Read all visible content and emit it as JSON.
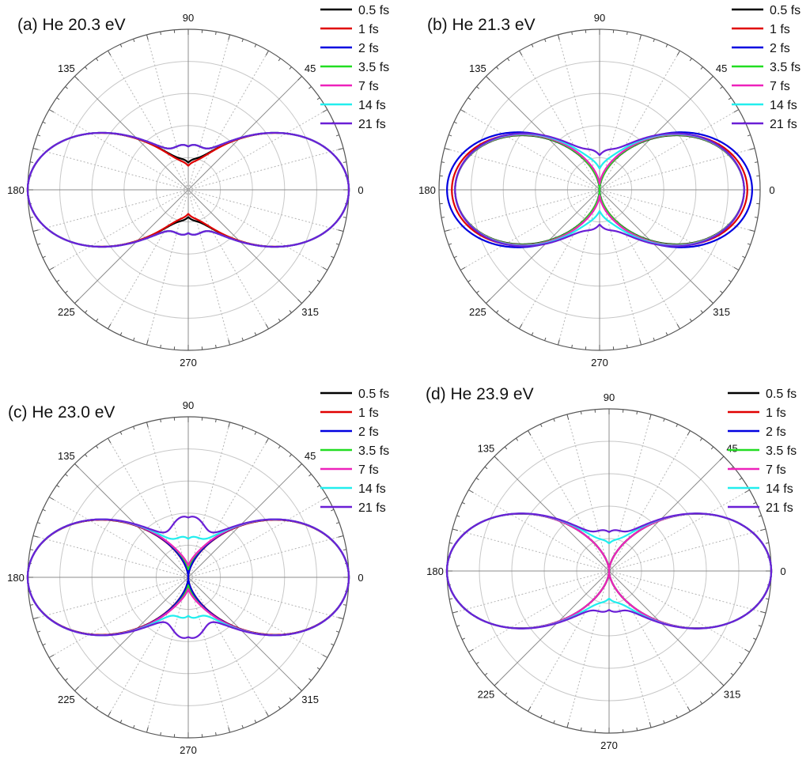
{
  "chart_data": [
    {
      "type": "polar",
      "title": "(a) He 20.3 eV",
      "angular_ticks": [
        "0",
        "45",
        "90",
        "135",
        "180",
        "225",
        "270",
        "315"
      ],
      "radial_grid_rings": 5,
      "legend_position": "top-right",
      "series": [
        {
          "name": "0.5 fs",
          "color": "#000000",
          "beta": 2.0,
          "b4": 0.0,
          "pinch": 1.0,
          "lobe": 0.17
        },
        {
          "name": "1 fs",
          "color": "#e00000",
          "beta": 2.0,
          "b4": 0.0,
          "pinch": 1.0,
          "lobe": 0.15
        },
        {
          "name": "2 fs",
          "color": "#0000e0",
          "beta": 2.0,
          "b4": 0.0,
          "pinch": 1.0,
          "lobe": 0.27
        },
        {
          "name": "3.5 fs",
          "color": "#22dd22",
          "beta": 2.0,
          "b4": 0.0,
          "pinch": 1.0,
          "lobe": 0.27
        },
        {
          "name": "7 fs",
          "color": "#ee22bb",
          "beta": 2.0,
          "b4": 0.0,
          "pinch": 1.0,
          "lobe": 0.27
        },
        {
          "name": "14 fs",
          "color": "#22eeee",
          "beta": 2.0,
          "b4": 0.0,
          "pinch": 1.0,
          "lobe": 0.27
        },
        {
          "name": "21 fs",
          "color": "#6a1fd6",
          "beta": 2.0,
          "b4": 0.0,
          "pinch": 1.0,
          "lobe": 0.27
        }
      ]
    },
    {
      "type": "polar",
      "title": "(b) He 21.3 eV",
      "angular_ticks": [
        "0",
        "45",
        "90",
        "135",
        "180",
        "225",
        "270",
        "315"
      ],
      "radial_grid_rings": 5,
      "legend_position": "top-right",
      "series": [
        {
          "name": "0.5 fs",
          "color": "#000000",
          "beta": 1.0,
          "b4": 0.0,
          "pinch": 0.9,
          "lobe": 0.0
        },
        {
          "name": "1 fs",
          "color": "#e00000",
          "beta": 1.0,
          "b4": 0.0,
          "pinch": 0.92,
          "lobe": 0.0
        },
        {
          "name": "2 fs",
          "color": "#0000e0",
          "beta": 1.0,
          "b4": 0.0,
          "pinch": 0.95,
          "lobe": 0.0
        },
        {
          "name": "3.5 fs",
          "color": "#22dd22",
          "beta": 0.94,
          "b4": 0.0,
          "pinch": 0.9,
          "lobe": 0.0
        },
        {
          "name": "7 fs",
          "color": "#ee22bb",
          "beta": 0.86,
          "b4": 0.06,
          "pinch": 0.9,
          "lobe": 0.0
        },
        {
          "name": "14 fs",
          "color": "#22eeee",
          "beta": 0.78,
          "b4": 0.22,
          "pinch": 0.9,
          "lobe": 0.0
        },
        {
          "name": "21 fs",
          "color": "#6a1fd6",
          "beta": 0.72,
          "b4": 0.36,
          "pinch": 0.9,
          "lobe": 0.0
        }
      ]
    },
    {
      "type": "polar",
      "title": "(c) He 23.0 eV",
      "angular_ticks": [
        "0",
        "45",
        "90",
        "135",
        "180",
        "225",
        "270",
        "315"
      ],
      "radial_grid_rings": 5,
      "legend_position": "top-right",
      "series": [
        {
          "name": "0.5 fs",
          "color": "#000000",
          "beta": 1.7,
          "b4": 0.0,
          "pinch": 1.0,
          "lobe": 0.0
        },
        {
          "name": "1 fs",
          "color": "#e00000",
          "beta": 1.7,
          "b4": 0.0,
          "pinch": 1.0,
          "lobe": 0.0
        },
        {
          "name": "2 fs",
          "color": "#0000e0",
          "beta": 1.6,
          "b4": 0.0,
          "pinch": 1.0,
          "lobe": 0.0
        },
        {
          "name": "3.5 fs",
          "color": "#22dd22",
          "beta": 1.6,
          "b4": 0.0,
          "pinch": 1.0,
          "lobe": 0.05
        },
        {
          "name": "7 fs",
          "color": "#ee22bb",
          "beta": 1.6,
          "b4": 0.12,
          "pinch": 1.0,
          "lobe": 0.0
        },
        {
          "name": "14 fs",
          "color": "#22eeee",
          "beta": 1.6,
          "b4": 0.4,
          "pinch": 1.0,
          "lobe": 0.0
        },
        {
          "name": "21 fs",
          "color": "#6a1fd6",
          "beta": 1.6,
          "b4": 0.62,
          "pinch": 1.0,
          "lobe": 0.0
        }
      ]
    },
    {
      "type": "polar",
      "title": "(d) He 23.9 eV",
      "angular_ticks": [
        "0",
        "45",
        "90",
        "135",
        "180",
        "225",
        "270",
        "315"
      ],
      "radial_grid_rings": 5,
      "legend_position": "top-right",
      "series": [
        {
          "name": "0.5 fs",
          "color": "#000000",
          "beta": 2.0,
          "b4": 0.0,
          "pinch": 1.0,
          "lobe": 0.0
        },
        {
          "name": "1 fs",
          "color": "#e00000",
          "beta": 2.0,
          "b4": 0.0,
          "pinch": 1.0,
          "lobe": 0.0
        },
        {
          "name": "2 fs",
          "color": "#0000e0",
          "beta": 2.0,
          "b4": 0.0,
          "pinch": 1.0,
          "lobe": 0.0
        },
        {
          "name": "3.5 fs",
          "color": "#22dd22",
          "beta": 2.0,
          "b4": 0.0,
          "pinch": 1.0,
          "lobe": 0.0
        },
        {
          "name": "7 fs",
          "color": "#ee22bb",
          "beta": 2.0,
          "b4": 0.0,
          "pinch": 1.0,
          "lobe": 0.0
        },
        {
          "name": "14 fs",
          "color": "#22eeee",
          "beta": 2.0,
          "b4": 0.0,
          "pinch": 1.0,
          "lobe": 0.17
        },
        {
          "name": "21 fs",
          "color": "#6a1fd6",
          "beta": 2.0,
          "b4": 0.0,
          "pinch": 1.0,
          "lobe": 0.24
        }
      ]
    }
  ]
}
